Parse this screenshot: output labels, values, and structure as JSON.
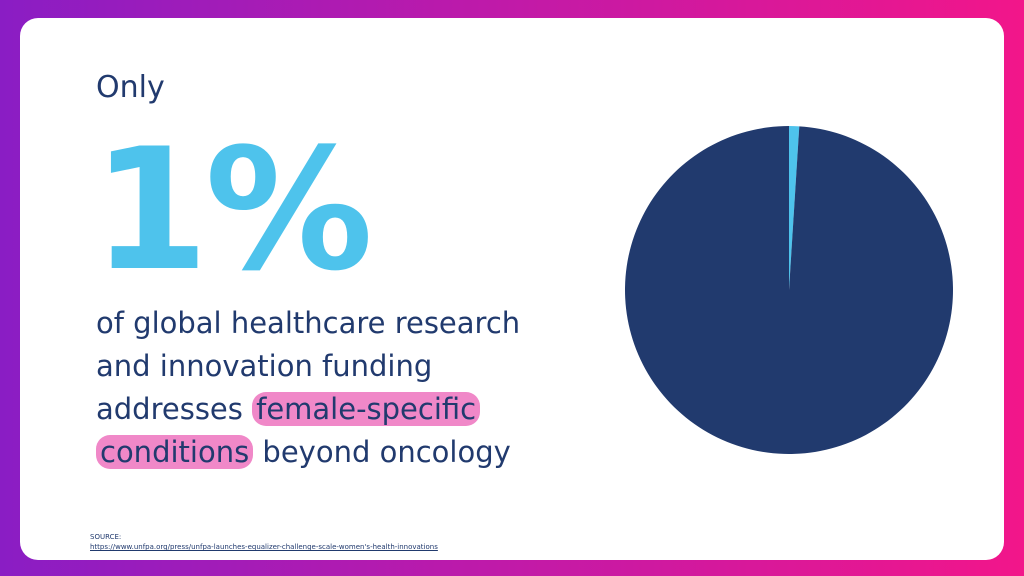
{
  "intro": "Only",
  "body": [
    [
      "of global healthcare research"
    ],
    [
      "and innovation funding"
    ],
    [
      "addresses",
      "female-specific"
    ],
    [
      "conditions",
      "beyond oncology"
    ]
  ],
  "source": {
    "label": "SOURCE:",
    "url": "https://www.unfpa.org/press/unfpa-launches-equalizer-challenge-scale-women's-health-innovations"
  },
  "chart_data": {
    "type": "pie",
    "values": [
      1,
      99
    ],
    "value_labels": [
      "1%",
      null
    ],
    "colors": [
      "#4ec3ec",
      "#213a6e"
    ]
  }
}
